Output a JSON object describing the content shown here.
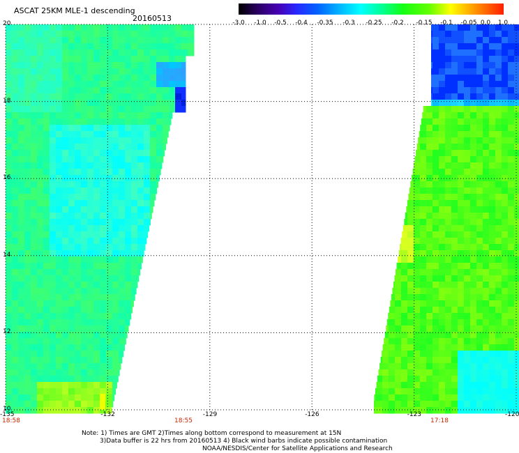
{
  "header": {
    "title": "ASCAT 25KM MLE-1 descending",
    "date": "20160513"
  },
  "colorbar": {
    "labels": [
      "-3.0",
      "-1.0",
      "-0.5",
      "-0.4",
      "-0.35",
      "-0.3",
      "-0.25",
      "-0.2",
      "-0.15",
      "-0.1",
      "-0.05",
      "0.0",
      "1.0"
    ],
    "colors": [
      "#000000",
      "#3a007a",
      "#4b00c8",
      "#1a1aff",
      "#0050ff",
      "#00a0ff",
      "#00ffff",
      "#00ff90",
      "#10ff10",
      "#80ff00",
      "#ffff00",
      "#ff8000",
      "#ff2000"
    ]
  },
  "map": {
    "lon_labels": [
      "-135",
      "-132",
      "-129",
      "-126",
      "-123",
      "-120"
    ],
    "lat_labels": [
      "20",
      "18",
      "16",
      "14",
      "12",
      "10"
    ],
    "lon_range": [
      -135,
      -120
    ],
    "lat_range": [
      10,
      20
    ],
    "lon_ticks": [
      -135,
      -132,
      -129,
      -126,
      -123,
      -120
    ],
    "lat_ticks": [
      20,
      18,
      16,
      14,
      12,
      10
    ],
    "grid": true,
    "grid_style": "dotted"
  },
  "times": {
    "left": "18:58",
    "middle": "18:55",
    "right": "17:18"
  },
  "note": {
    "line1": "Note: 1) Times are GMT 2)Times along bottom correspond to measurement at 15N",
    "line2": "3)Data buffer is 22 hrs from 20160513 4) Black wind barbs indicate possible contamination",
    "line3": "NOAA/NESDIS/Center for Satellite Applications and Research"
  }
}
